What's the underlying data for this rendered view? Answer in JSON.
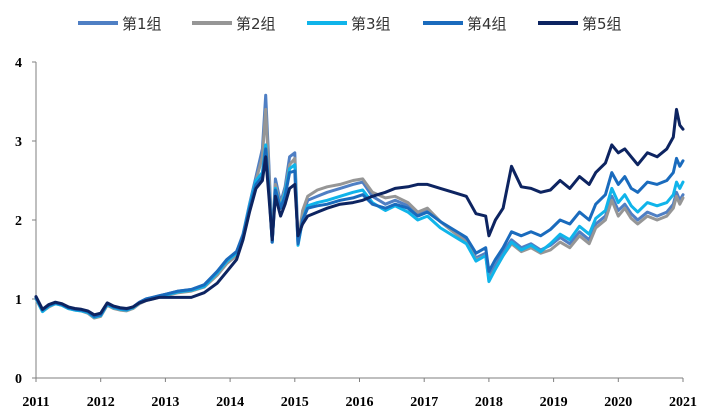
{
  "chart_data": {
    "type": "line",
    "title": "",
    "xlabel": "",
    "ylabel": "",
    "xlim": [
      2011.0,
      2021.0
    ],
    "ylim": [
      0,
      4
    ],
    "x_ticks": [
      "2011",
      "2012",
      "2013",
      "2014",
      "2015",
      "2016",
      "2017",
      "2018",
      "2019",
      "2020",
      "2021"
    ],
    "y_ticks": [
      "0",
      "1",
      "2",
      "3",
      "4"
    ],
    "grid": false,
    "legend_position": "top",
    "x": [
      2011.0,
      2011.1,
      2011.2,
      2011.3,
      2011.4,
      2011.5,
      2011.6,
      2011.7,
      2011.8,
      2011.9,
      2012.0,
      2012.1,
      2012.2,
      2012.3,
      2012.4,
      2012.5,
      2012.6,
      2012.7,
      2012.8,
      2012.9,
      2013.0,
      2013.2,
      2013.4,
      2013.6,
      2013.8,
      2013.95,
      2014.1,
      2014.2,
      2014.3,
      2014.4,
      2014.5,
      2014.55,
      2014.6,
      2014.65,
      2014.7,
      2014.78,
      2014.85,
      2014.92,
      2015.0,
      2015.05,
      2015.12,
      2015.2,
      2015.35,
      2015.5,
      2015.7,
      2015.9,
      2016.05,
      2016.2,
      2016.4,
      2016.55,
      2016.75,
      2016.9,
      2017.05,
      2017.25,
      2017.45,
      2017.65,
      2017.8,
      2017.95,
      2018.0,
      2018.1,
      2018.22,
      2018.35,
      2018.5,
      2018.65,
      2018.8,
      2018.95,
      2019.1,
      2019.25,
      2019.4,
      2019.55,
      2019.65,
      2019.8,
      2019.9,
      2020.0,
      2020.1,
      2020.2,
      2020.3,
      2020.45,
      2020.6,
      2020.75,
      2020.85,
      2020.9,
      2020.95,
      2021.0
    ],
    "series": [
      {
        "name": "第1组",
        "color": "#4f7fc4",
        "values": [
          1.02,
          0.85,
          0.92,
          0.95,
          0.93,
          0.89,
          0.87,
          0.86,
          0.84,
          0.78,
          0.8,
          0.94,
          0.9,
          0.88,
          0.87,
          0.9,
          0.96,
          1.0,
          1.02,
          1.04,
          1.06,
          1.1,
          1.12,
          1.18,
          1.35,
          1.5,
          1.6,
          1.82,
          2.2,
          2.55,
          2.9,
          3.58,
          2.7,
          1.72,
          2.52,
          2.22,
          2.42,
          2.8,
          2.85,
          1.72,
          2.05,
          2.25,
          2.3,
          2.35,
          2.4,
          2.45,
          2.48,
          2.3,
          2.2,
          2.25,
          2.18,
          2.08,
          2.12,
          1.98,
          1.85,
          1.75,
          1.52,
          1.58,
          1.28,
          1.42,
          1.6,
          1.75,
          1.65,
          1.7,
          1.62,
          1.68,
          1.78,
          1.7,
          1.85,
          1.75,
          1.95,
          2.05,
          2.3,
          2.12,
          2.2,
          2.08,
          2.0,
          2.1,
          2.05,
          2.1,
          2.2,
          2.35,
          2.25,
          2.32
        ]
      },
      {
        "name": "第2组",
        "color": "#969696",
        "values": [
          1.0,
          0.84,
          0.9,
          0.94,
          0.92,
          0.88,
          0.86,
          0.85,
          0.82,
          0.76,
          0.78,
          0.92,
          0.88,
          0.86,
          0.85,
          0.88,
          0.94,
          0.98,
          1.0,
          1.02,
          1.04,
          1.08,
          1.1,
          1.15,
          1.3,
          1.45,
          1.55,
          1.78,
          2.15,
          2.5,
          2.8,
          3.4,
          2.6,
          1.72,
          2.45,
          2.18,
          2.38,
          2.7,
          2.78,
          1.7,
          2.12,
          2.3,
          2.38,
          2.42,
          2.45,
          2.5,
          2.52,
          2.35,
          2.28,
          2.3,
          2.22,
          2.1,
          2.15,
          1.98,
          1.85,
          1.72,
          1.5,
          1.55,
          1.25,
          1.38,
          1.55,
          1.7,
          1.6,
          1.65,
          1.58,
          1.62,
          1.72,
          1.65,
          1.8,
          1.7,
          1.9,
          2.0,
          2.25,
          2.05,
          2.15,
          2.02,
          1.95,
          2.05,
          2.0,
          2.05,
          2.15,
          2.3,
          2.2,
          2.28
        ]
      },
      {
        "name": "第3组",
        "color": "#10b4ea",
        "values": [
          1.01,
          0.84,
          0.91,
          0.94,
          0.92,
          0.88,
          0.86,
          0.85,
          0.83,
          0.77,
          0.79,
          0.93,
          0.89,
          0.87,
          0.86,
          0.89,
          0.95,
          0.99,
          1.01,
          1.03,
          1.05,
          1.09,
          1.11,
          1.16,
          1.33,
          1.48,
          1.58,
          1.8,
          2.18,
          2.5,
          2.6,
          2.95,
          2.4,
          1.72,
          2.4,
          2.15,
          2.35,
          2.65,
          2.7,
          1.68,
          2.0,
          2.18,
          2.22,
          2.25,
          2.3,
          2.35,
          2.38,
          2.22,
          2.12,
          2.18,
          2.1,
          2.0,
          2.05,
          1.9,
          1.8,
          1.7,
          1.48,
          1.55,
          1.22,
          1.38,
          1.55,
          1.72,
          1.62,
          1.68,
          1.6,
          1.7,
          1.82,
          1.75,
          1.92,
          1.82,
          2.02,
          2.12,
          2.4,
          2.22,
          2.32,
          2.18,
          2.1,
          2.22,
          2.18,
          2.22,
          2.32,
          2.48,
          2.4,
          2.48
        ]
      },
      {
        "name": "第4组",
        "color": "#1a6bbd",
        "values": [
          1.02,
          0.86,
          0.92,
          0.95,
          0.93,
          0.89,
          0.87,
          0.86,
          0.84,
          0.78,
          0.8,
          0.94,
          0.9,
          0.88,
          0.87,
          0.9,
          0.96,
          1.0,
          1.02,
          1.04,
          1.06,
          1.1,
          1.12,
          1.18,
          1.35,
          1.5,
          1.6,
          1.8,
          2.15,
          2.45,
          2.55,
          2.9,
          2.4,
          1.72,
          2.38,
          2.15,
          2.3,
          2.6,
          2.62,
          1.7,
          2.0,
          2.15,
          2.18,
          2.2,
          2.25,
          2.28,
          2.32,
          2.2,
          2.15,
          2.2,
          2.15,
          2.05,
          2.1,
          1.98,
          1.88,
          1.78,
          1.58,
          1.65,
          1.35,
          1.5,
          1.65,
          1.85,
          1.8,
          1.85,
          1.8,
          1.88,
          2.0,
          1.95,
          2.1,
          2.0,
          2.2,
          2.32,
          2.6,
          2.45,
          2.55,
          2.4,
          2.35,
          2.48,
          2.45,
          2.5,
          2.6,
          2.78,
          2.68,
          2.75
        ]
      },
      {
        "name": "第5组",
        "color": "#0d2461",
        "values": [
          1.03,
          0.87,
          0.93,
          0.96,
          0.94,
          0.9,
          0.88,
          0.87,
          0.85,
          0.8,
          0.82,
          0.95,
          0.91,
          0.89,
          0.88,
          0.9,
          0.95,
          0.98,
          1.0,
          1.02,
          1.02,
          1.02,
          1.02,
          1.08,
          1.2,
          1.35,
          1.5,
          1.75,
          2.1,
          2.4,
          2.5,
          2.8,
          2.3,
          1.75,
          2.3,
          2.05,
          2.2,
          2.4,
          2.45,
          1.8,
          1.95,
          2.05,
          2.1,
          2.15,
          2.2,
          2.22,
          2.25,
          2.3,
          2.35,
          2.4,
          2.42,
          2.45,
          2.45,
          2.4,
          2.35,
          2.3,
          2.08,
          2.05,
          1.8,
          2.0,
          2.15,
          2.68,
          2.42,
          2.4,
          2.35,
          2.38,
          2.5,
          2.4,
          2.55,
          2.45,
          2.6,
          2.72,
          2.95,
          2.85,
          2.9,
          2.8,
          2.7,
          2.85,
          2.8,
          2.9,
          3.05,
          3.4,
          3.2,
          3.15
        ]
      }
    ]
  }
}
